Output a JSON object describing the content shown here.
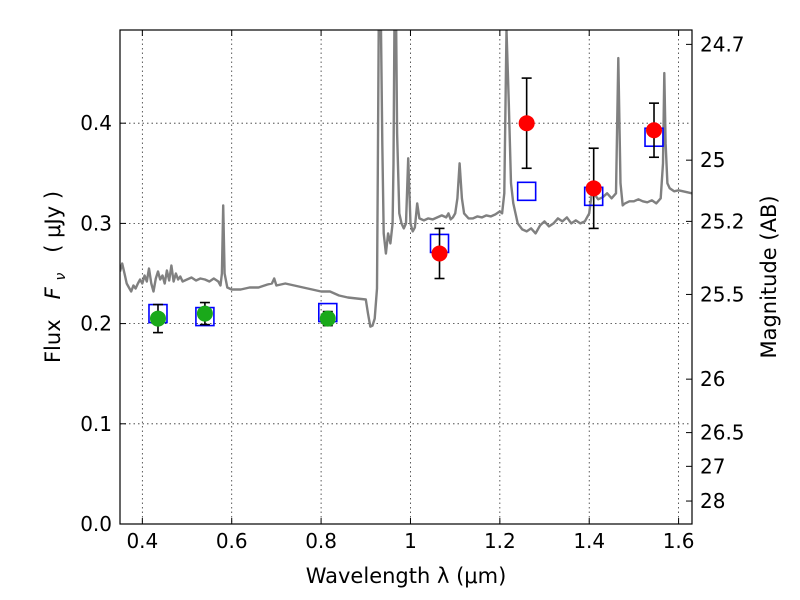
{
  "chart_data": {
    "type": "scatter",
    "title": "",
    "xlabel": "Wavelength  λ (μm)",
    "ylabel": "Flux  F_ν  ( μJy )",
    "ylabel_parts": {
      "pre": "Flux  ",
      "var": "F",
      "sub": "ν",
      "post": "  ( μJy )"
    },
    "y2label": "Magnitude (AB)",
    "xlim": [
      0.35,
      1.63
    ],
    "ylim": [
      0.0,
      0.493
    ],
    "grid": true,
    "x_ticks": [
      {
        "v": 0.4,
        "label": "0.4"
      },
      {
        "v": 0.6,
        "label": "0.6"
      },
      {
        "v": 0.8,
        "label": "0.8"
      },
      {
        "v": 1.0,
        "label": "1"
      },
      {
        "v": 1.2,
        "label": "1.2"
      },
      {
        "v": 1.4,
        "label": "1.4"
      },
      {
        "v": 1.6,
        "label": "1.6"
      }
    ],
    "y_ticks": [
      {
        "v": 0.0,
        "label": "0.0"
      },
      {
        "v": 0.1,
        "label": "0.1"
      },
      {
        "v": 0.2,
        "label": "0.2"
      },
      {
        "v": 0.3,
        "label": "0.3"
      },
      {
        "v": 0.4,
        "label": "0.4"
      }
    ],
    "y2_ticks": [
      {
        "mag": 24.7,
        "label": "24.7"
      },
      {
        "mag": 25.0,
        "label": "25"
      },
      {
        "mag": 25.2,
        "label": "25.2"
      },
      {
        "mag": 25.5,
        "label": "25.5"
      },
      {
        "mag": 26.0,
        "label": "26"
      },
      {
        "mag": 26.5,
        "label": "26.5"
      },
      {
        "mag": 27.0,
        "label": "27"
      },
      {
        "mag": 28.0,
        "label": "28"
      }
    ],
    "model_spectrum": {
      "color": "#808080",
      "points": [
        [
          0.35,
          0.252
        ],
        [
          0.355,
          0.26
        ],
        [
          0.36,
          0.25
        ],
        [
          0.365,
          0.24
        ],
        [
          0.37,
          0.236
        ],
        [
          0.375,
          0.232
        ],
        [
          0.38,
          0.238
        ],
        [
          0.385,
          0.235
        ],
        [
          0.39,
          0.24
        ],
        [
          0.395,
          0.244
        ],
        [
          0.4,
          0.24
        ],
        [
          0.405,
          0.248
        ],
        [
          0.41,
          0.242
        ],
        [
          0.415,
          0.255
        ],
        [
          0.42,
          0.24
        ],
        [
          0.425,
          0.232
        ],
        [
          0.43,
          0.245
        ],
        [
          0.435,
          0.252
        ],
        [
          0.44,
          0.244
        ],
        [
          0.445,
          0.248
        ],
        [
          0.45,
          0.24
        ],
        [
          0.455,
          0.253
        ],
        [
          0.46,
          0.243
        ],
        [
          0.465,
          0.258
        ],
        [
          0.47,
          0.242
        ],
        [
          0.475,
          0.25
        ],
        [
          0.48,
          0.244
        ],
        [
          0.485,
          0.247
        ],
        [
          0.49,
          0.242
        ],
        [
          0.5,
          0.244
        ],
        [
          0.51,
          0.246
        ],
        [
          0.52,
          0.243
        ],
        [
          0.53,
          0.245
        ],
        [
          0.54,
          0.244
        ],
        [
          0.55,
          0.242
        ],
        [
          0.56,
          0.245
        ],
        [
          0.57,
          0.242
        ],
        [
          0.575,
          0.238
        ],
        [
          0.578,
          0.25
        ],
        [
          0.581,
          0.318
        ],
        [
          0.584,
          0.25
        ],
        [
          0.59,
          0.236
        ],
        [
          0.6,
          0.234
        ],
        [
          0.62,
          0.234
        ],
        [
          0.64,
          0.236
        ],
        [
          0.66,
          0.236
        ],
        [
          0.68,
          0.239
        ],
        [
          0.69,
          0.24
        ],
        [
          0.695,
          0.245
        ],
        [
          0.7,
          0.238
        ],
        [
          0.72,
          0.24
        ],
        [
          0.74,
          0.238
        ],
        [
          0.76,
          0.236
        ],
        [
          0.78,
          0.234
        ],
        [
          0.8,
          0.232
        ],
        [
          0.82,
          0.232
        ],
        [
          0.84,
          0.228
        ],
        [
          0.86,
          0.226
        ],
        [
          0.88,
          0.225
        ],
        [
          0.9,
          0.224
        ],
        [
          0.905,
          0.21
        ],
        [
          0.91,
          0.197
        ],
        [
          0.915,
          0.198
        ],
        [
          0.92,
          0.205
        ],
        [
          0.925,
          0.235
        ],
        [
          0.927,
          0.35
        ],
        [
          0.929,
          0.493
        ],
        [
          0.934,
          0.493
        ],
        [
          0.937,
          0.38
        ],
        [
          0.94,
          0.29
        ],
        [
          0.945,
          0.27
        ],
        [
          0.95,
          0.29
        ],
        [
          0.955,
          0.28
        ],
        [
          0.96,
          0.3
        ],
        [
          0.962,
          0.36
        ],
        [
          0.964,
          0.493
        ],
        [
          0.968,
          0.493
        ],
        [
          0.97,
          0.39
        ],
        [
          0.975,
          0.31
        ],
        [
          0.98,
          0.3
        ],
        [
          0.985,
          0.295
        ],
        [
          0.99,
          0.3
        ],
        [
          0.995,
          0.365
        ],
        [
          1.0,
          0.3
        ],
        [
          1.005,
          0.292
        ],
        [
          1.01,
          0.296
        ],
        [
          1.015,
          0.32
        ],
        [
          1.02,
          0.305
        ],
        [
          1.03,
          0.303
        ],
        [
          1.04,
          0.305
        ],
        [
          1.05,
          0.304
        ],
        [
          1.06,
          0.306
        ],
        [
          1.07,
          0.308
        ],
        [
          1.08,
          0.306
        ],
        [
          1.085,
          0.31
        ],
        [
          1.09,
          0.304
        ],
        [
          1.095,
          0.306
        ],
        [
          1.1,
          0.31
        ],
        [
          1.105,
          0.325
        ],
        [
          1.11,
          0.36
        ],
        [
          1.115,
          0.325
        ],
        [
          1.12,
          0.31
        ],
        [
          1.13,
          0.305
        ],
        [
          1.14,
          0.305
        ],
        [
          1.15,
          0.307
        ],
        [
          1.16,
          0.306
        ],
        [
          1.17,
          0.308
        ],
        [
          1.18,
          0.307
        ],
        [
          1.19,
          0.309
        ],
        [
          1.2,
          0.312
        ],
        [
          1.205,
          0.31
        ],
        [
          1.21,
          0.33
        ],
        [
          1.215,
          0.493
        ],
        [
          1.22,
          0.42
        ],
        [
          1.225,
          0.34
        ],
        [
          1.23,
          0.32
        ],
        [
          1.235,
          0.31
        ],
        [
          1.24,
          0.3
        ],
        [
          1.25,
          0.294
        ],
        [
          1.26,
          0.292
        ],
        [
          1.27,
          0.295
        ],
        [
          1.28,
          0.29
        ],
        [
          1.29,
          0.298
        ],
        [
          1.3,
          0.302
        ],
        [
          1.31,
          0.297
        ],
        [
          1.32,
          0.3
        ],
        [
          1.33,
          0.305
        ],
        [
          1.34,
          0.302
        ],
        [
          1.35,
          0.306
        ],
        [
          1.36,
          0.3
        ],
        [
          1.37,
          0.303
        ],
        [
          1.38,
          0.3
        ],
        [
          1.39,
          0.302
        ],
        [
          1.4,
          0.31
        ],
        [
          1.405,
          0.328
        ],
        [
          1.41,
          0.33
        ],
        [
          1.42,
          0.324
        ],
        [
          1.43,
          0.326
        ],
        [
          1.44,
          0.33
        ],
        [
          1.45,
          0.325
        ],
        [
          1.46,
          0.33
        ],
        [
          1.465,
          0.465
        ],
        [
          1.47,
          0.34
        ],
        [
          1.475,
          0.318
        ],
        [
          1.48,
          0.32
        ],
        [
          1.49,
          0.322
        ],
        [
          1.5,
          0.322
        ],
        [
          1.51,
          0.324
        ],
        [
          1.52,
          0.322
        ],
        [
          1.53,
          0.321
        ],
        [
          1.54,
          0.323
        ],
        [
          1.55,
          0.32
        ],
        [
          1.56,
          0.325
        ],
        [
          1.565,
          0.36
        ],
        [
          1.568,
          0.45
        ],
        [
          1.571,
          0.38
        ],
        [
          1.575,
          0.34
        ],
        [
          1.58,
          0.335
        ],
        [
          1.59,
          0.332
        ],
        [
          1.6,
          0.333
        ],
        [
          1.61,
          0.332
        ],
        [
          1.62,
          0.331
        ],
        [
          1.63,
          0.33
        ]
      ]
    },
    "series": [
      {
        "marker": "circle",
        "color": "#1aa91a",
        "points": [
          {
            "x": 0.435,
            "y": 0.205,
            "err": 0.014
          },
          {
            "x": 0.54,
            "y": 0.21,
            "err": 0.011
          },
          {
            "x": 0.815,
            "y": 0.205,
            "err": 0.007
          }
        ]
      },
      {
        "marker": "circle",
        "color": "#ff0000",
        "points": [
          {
            "x": 1.065,
            "y": 0.27,
            "err": 0.025
          },
          {
            "x": 1.26,
            "y": 0.4,
            "err": 0.045
          },
          {
            "x": 1.41,
            "y": 0.335,
            "err": 0.04
          },
          {
            "x": 1.545,
            "y": 0.393,
            "err": 0.027
          }
        ]
      },
      {
        "marker": "square",
        "color": "#0000ff",
        "points": [
          {
            "x": 0.435,
            "y": 0.21
          },
          {
            "x": 0.54,
            "y": 0.207
          },
          {
            "x": 0.815,
            "y": 0.211
          },
          {
            "x": 1.065,
            "y": 0.28
          },
          {
            "x": 1.26,
            "y": 0.332
          },
          {
            "x": 1.41,
            "y": 0.327
          },
          {
            "x": 1.545,
            "y": 0.386
          }
        ]
      }
    ]
  }
}
